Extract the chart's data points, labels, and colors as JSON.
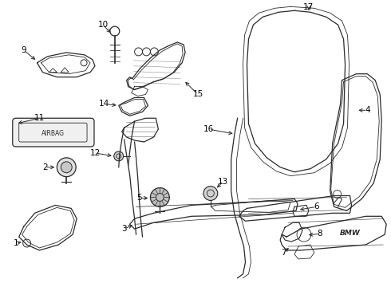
{
  "bg_color": "#ffffff",
  "line_color": "#2a2a2a",
  "text_color": "#000000",
  "fig_width": 4.9,
  "fig_height": 3.6,
  "dpi": 100
}
